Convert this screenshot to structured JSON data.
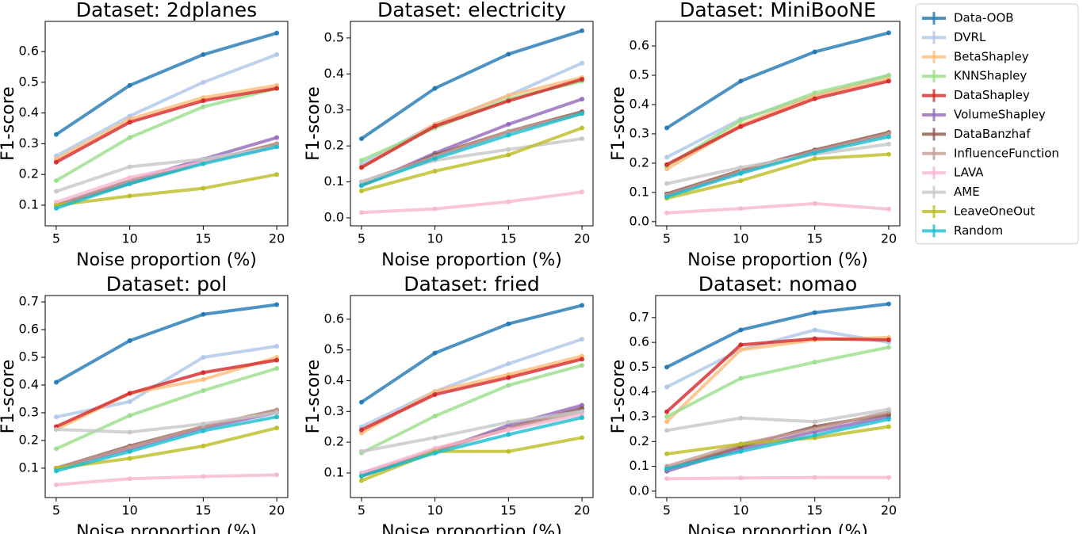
{
  "chart_data": [
    {
      "type": "line",
      "title": "Dataset: 2dplanes",
      "xlabel": "Noise proportion (%)",
      "ylabel": "F1-score",
      "x": [
        5,
        10,
        15,
        20
      ],
      "xlim": [
        4.25,
        20.75
      ],
      "xticks": [
        5,
        10,
        15,
        20
      ],
      "ylim": [
        0.033,
        0.698
      ],
      "yticks": [
        0.1,
        0.2,
        0.3,
        0.4,
        0.5,
        0.6
      ],
      "legend": "outside right",
      "series": [
        {
          "name": "Data-OOB",
          "color": "#1f77b4",
          "values": [
            0.33,
            0.49,
            0.59,
            0.66
          ]
        },
        {
          "name": "DVRL",
          "color": "#aec7e8",
          "values": [
            0.26,
            0.39,
            0.5,
            0.59
          ]
        },
        {
          "name": "BetaShapley",
          "color": "#ffbb78",
          "values": [
            0.25,
            0.38,
            0.45,
            0.49
          ]
        },
        {
          "name": "KNNShapley",
          "color": "#98df8a",
          "values": [
            0.18,
            0.32,
            0.42,
            0.48
          ]
        },
        {
          "name": "DataShapley",
          "color": "#d62728",
          "values": [
            0.24,
            0.37,
            0.44,
            0.48
          ]
        },
        {
          "name": "VolumeShapley",
          "color": "#9467bd",
          "values": [
            0.1,
            0.18,
            0.25,
            0.32
          ]
        },
        {
          "name": "DataBanzhaf",
          "color": "#8c564b",
          "values": [
            0.1,
            0.17,
            0.24,
            0.3
          ]
        },
        {
          "name": "InfluenceFunction",
          "color": "#c49c94",
          "values": [
            0.1,
            0.18,
            0.24,
            0.3
          ]
        },
        {
          "name": "LAVA",
          "color": "#f7b6d2",
          "values": [
            0.11,
            0.19,
            0.24,
            0.29
          ]
        },
        {
          "name": "AME",
          "color": "#c7c7c7",
          "values": [
            0.145,
            0.225,
            0.25,
            0.29
          ]
        },
        {
          "name": "LeaveOneOut",
          "color": "#bcbd22",
          "values": [
            0.1,
            0.13,
            0.155,
            0.2
          ]
        },
        {
          "name": "Random",
          "color": "#17becf",
          "values": [
            0.09,
            0.17,
            0.235,
            0.29
          ]
        }
      ]
    },
    {
      "type": "line",
      "title": "Dataset: electricity",
      "xlabel": "Noise proportion (%)",
      "ylabel": "F1-score",
      "x": [
        5,
        10,
        15,
        20
      ],
      "xlim": [
        4.25,
        20.75
      ],
      "xticks": [
        5,
        10,
        15,
        20
      ],
      "ylim": [
        -0.022,
        0.546
      ],
      "yticks": [
        {
          "value": 0,
          "label": "0.0"
        },
        0.1,
        0.2,
        0.3,
        0.4,
        0.5
      ],
      "series": [
        {
          "name": "Data-OOB",
          "color": "#1f77b4",
          "values": [
            0.22,
            0.36,
            0.455,
            0.52
          ]
        },
        {
          "name": "DVRL",
          "color": "#aec7e8",
          "values": [
            0.15,
            0.26,
            0.34,
            0.43
          ]
        },
        {
          "name": "BetaShapley",
          "color": "#ffbb78",
          "values": [
            0.14,
            0.26,
            0.34,
            0.39
          ]
        },
        {
          "name": "KNNShapley",
          "color": "#98df8a",
          "values": [
            0.16,
            0.25,
            0.33,
            0.38
          ]
        },
        {
          "name": "DataShapley",
          "color": "#d62728",
          "values": [
            0.14,
            0.255,
            0.325,
            0.385
          ]
        },
        {
          "name": "VolumeShapley",
          "color": "#9467bd",
          "values": [
            0.09,
            0.18,
            0.26,
            0.33
          ]
        },
        {
          "name": "DataBanzhaf",
          "color": "#8c564b",
          "values": [
            0.09,
            0.175,
            0.24,
            0.295
          ]
        },
        {
          "name": "InfluenceFunction",
          "color": "#c49c94",
          "values": [
            0.1,
            0.17,
            0.24,
            0.29
          ]
        },
        {
          "name": "LAVA",
          "color": "#f7b6d2",
          "values": [
            0.015,
            0.025,
            0.045,
            0.072
          ]
        },
        {
          "name": "AME",
          "color": "#c7c7c7",
          "values": [
            0.1,
            0.16,
            0.19,
            0.22
          ]
        },
        {
          "name": "LeaveOneOut",
          "color": "#bcbd22",
          "values": [
            0.075,
            0.13,
            0.175,
            0.25
          ]
        },
        {
          "name": "Random",
          "color": "#17becf",
          "values": [
            0.09,
            0.165,
            0.23,
            0.29
          ]
        }
      ]
    },
    {
      "type": "line",
      "title": "Dataset: MiniBooNE",
      "xlabel": "Noise proportion (%)",
      "ylabel": "F1-score",
      "x": [
        5,
        10,
        15,
        20
      ],
      "xlim": [
        4.25,
        20.75
      ],
      "xticks": [
        5,
        10,
        15,
        20
      ],
      "ylim": [
        -0.014,
        0.684
      ],
      "yticks": [
        {
          "value": 0,
          "label": "0.0"
        },
        0.1,
        0.2,
        0.3,
        0.4,
        0.5,
        0.6
      ],
      "series": [
        {
          "name": "Data-OOB",
          "color": "#1f77b4",
          "values": [
            0.32,
            0.48,
            0.58,
            0.645
          ]
        },
        {
          "name": "DVRL",
          "color": "#aec7e8",
          "values": [
            0.22,
            0.35,
            0.43,
            0.5
          ]
        },
        {
          "name": "BetaShapley",
          "color": "#ffbb78",
          "values": [
            0.18,
            0.33,
            0.43,
            0.49
          ]
        },
        {
          "name": "KNNShapley",
          "color": "#98df8a",
          "values": [
            0.19,
            0.345,
            0.44,
            0.5
          ]
        },
        {
          "name": "DataShapley",
          "color": "#d62728",
          "values": [
            0.195,
            0.325,
            0.42,
            0.48
          ]
        },
        {
          "name": "VolumeShapley",
          "color": "#9467bd",
          "values": [
            0.09,
            0.17,
            0.24,
            0.3
          ]
        },
        {
          "name": "DataBanzhaf",
          "color": "#8c564b",
          "values": [
            0.095,
            0.175,
            0.245,
            0.305
          ]
        },
        {
          "name": "InfluenceFunction",
          "color": "#c49c94",
          "values": [
            0.09,
            0.17,
            0.24,
            0.3
          ]
        },
        {
          "name": "LAVA",
          "color": "#f7b6d2",
          "values": [
            0.03,
            0.045,
            0.062,
            0.043
          ]
        },
        {
          "name": "AME",
          "color": "#c7c7c7",
          "values": [
            0.13,
            0.185,
            0.23,
            0.265
          ]
        },
        {
          "name": "LeaveOneOut",
          "color": "#bcbd22",
          "values": [
            0.08,
            0.14,
            0.215,
            0.23
          ]
        },
        {
          "name": "Random",
          "color": "#17becf",
          "values": [
            0.085,
            0.165,
            0.235,
            0.29
          ]
        }
      ]
    },
    {
      "type": "line",
      "title": "Dataset: pol",
      "xlabel": "Noise proportion (%)",
      "ylabel": "F1-score",
      "x": [
        5,
        10,
        15,
        20
      ],
      "xlim": [
        4.25,
        20.75
      ],
      "xticks": [
        5,
        10,
        15,
        20
      ],
      "ylim": [
        -0.006,
        0.723
      ],
      "yticks": [
        0.1,
        0.2,
        0.3,
        0.4,
        0.5,
        0.6,
        0.7
      ],
      "series": [
        {
          "name": "Data-OOB",
          "color": "#1f77b4",
          "values": [
            0.41,
            0.56,
            0.655,
            0.69
          ]
        },
        {
          "name": "DVRL",
          "color": "#aec7e8",
          "values": [
            0.285,
            0.34,
            0.5,
            0.54
          ]
        },
        {
          "name": "BetaShapley",
          "color": "#ffbb78",
          "values": [
            0.24,
            0.37,
            0.42,
            0.5
          ]
        },
        {
          "name": "KNNShapley",
          "color": "#98df8a",
          "values": [
            0.17,
            0.29,
            0.38,
            0.46
          ]
        },
        {
          "name": "DataShapley",
          "color": "#d62728",
          "values": [
            0.25,
            0.37,
            0.445,
            0.49
          ]
        },
        {
          "name": "VolumeShapley",
          "color": "#9467bd",
          "values": [
            0.1,
            0.17,
            0.245,
            0.3
          ]
        },
        {
          "name": "DataBanzhaf",
          "color": "#8c564b",
          "values": [
            0.1,
            0.18,
            0.25,
            0.31
          ]
        },
        {
          "name": "InfluenceFunction",
          "color": "#c49c94",
          "values": [
            0.1,
            0.175,
            0.25,
            0.31
          ]
        },
        {
          "name": "LAVA",
          "color": "#f7b6d2",
          "values": [
            0.04,
            0.062,
            0.07,
            0.076
          ]
        },
        {
          "name": "AME",
          "color": "#c7c7c7",
          "values": [
            0.24,
            0.23,
            0.26,
            0.3
          ]
        },
        {
          "name": "LeaveOneOut",
          "color": "#bcbd22",
          "values": [
            0.1,
            0.135,
            0.18,
            0.245
          ]
        },
        {
          "name": "Random",
          "color": "#17becf",
          "values": [
            0.09,
            0.16,
            0.235,
            0.285
          ]
        }
      ]
    },
    {
      "type": "line",
      "title": "Dataset: fried",
      "xlabel": "Noise proportion (%)",
      "ylabel": "F1-score",
      "x": [
        5,
        10,
        15,
        20
      ],
      "xlim": [
        4.25,
        20.75
      ],
      "xticks": [
        5,
        10,
        15,
        20
      ],
      "ylim": [
        0.02,
        0.677
      ],
      "yticks": [
        0.1,
        0.2,
        0.3,
        0.4,
        0.5,
        0.6
      ],
      "series": [
        {
          "name": "Data-OOB",
          "color": "#1f77b4",
          "values": [
            0.33,
            0.49,
            0.585,
            0.645
          ]
        },
        {
          "name": "DVRL",
          "color": "#aec7e8",
          "values": [
            0.25,
            0.365,
            0.455,
            0.535
          ]
        },
        {
          "name": "BetaShapley",
          "color": "#ffbb78",
          "values": [
            0.23,
            0.365,
            0.42,
            0.48
          ]
        },
        {
          "name": "KNNShapley",
          "color": "#98df8a",
          "values": [
            0.165,
            0.285,
            0.385,
            0.45
          ]
        },
        {
          "name": "DataShapley",
          "color": "#d62728",
          "values": [
            0.24,
            0.355,
            0.41,
            0.47
          ]
        },
        {
          "name": "VolumeShapley",
          "color": "#9467bd",
          "values": [
            0.09,
            0.17,
            0.255,
            0.32
          ]
        },
        {
          "name": "DataBanzhaf",
          "color": "#8c564b",
          "values": [
            0.09,
            0.175,
            0.245,
            0.31
          ]
        },
        {
          "name": "InfluenceFunction",
          "color": "#c49c94",
          "values": [
            0.1,
            0.17,
            0.245,
            0.3
          ]
        },
        {
          "name": "LAVA",
          "color": "#f7b6d2",
          "values": [
            0.1,
            0.18,
            0.24,
            0.29
          ]
        },
        {
          "name": "AME",
          "color": "#c7c7c7",
          "values": [
            0.17,
            0.215,
            0.265,
            0.3
          ]
        },
        {
          "name": "LeaveOneOut",
          "color": "#bcbd22",
          "values": [
            0.075,
            0.17,
            0.17,
            0.215
          ]
        },
        {
          "name": "Random",
          "color": "#17becf",
          "values": [
            0.09,
            0.165,
            0.225,
            0.28
          ]
        }
      ]
    },
    {
      "type": "line",
      "title": "Dataset: nomao",
      "xlabel": "Noise proportion (%)",
      "ylabel": "F1-score",
      "x": [
        5,
        10,
        15,
        20
      ],
      "xlim": [
        4.25,
        20.75
      ],
      "xticks": [
        5,
        10,
        15,
        20
      ],
      "ylim": [
        -0.026,
        0.789
      ],
      "yticks": [
        {
          "value": 0,
          "label": "0.0"
        },
        0.1,
        0.2,
        0.3,
        0.4,
        0.5,
        0.6,
        0.7
      ],
      "series": [
        {
          "name": "Data-OOB",
          "color": "#1f77b4",
          "values": [
            0.5,
            0.65,
            0.72,
            0.755
          ]
        },
        {
          "name": "DVRL",
          "color": "#aec7e8",
          "values": [
            0.42,
            0.57,
            0.65,
            0.6
          ]
        },
        {
          "name": "BetaShapley",
          "color": "#ffbb78",
          "values": [
            0.28,
            0.57,
            0.61,
            0.62
          ]
        },
        {
          "name": "KNNShapley",
          "color": "#98df8a",
          "values": [
            0.3,
            0.455,
            0.52,
            0.58
          ]
        },
        {
          "name": "DataShapley",
          "color": "#d62728",
          "values": [
            0.32,
            0.59,
            0.615,
            0.61
          ]
        },
        {
          "name": "VolumeShapley",
          "color": "#9467bd",
          "values": [
            0.08,
            0.17,
            0.24,
            0.3
          ]
        },
        {
          "name": "DataBanzhaf",
          "color": "#8c564b",
          "values": [
            0.09,
            0.18,
            0.26,
            0.31
          ]
        },
        {
          "name": "InfluenceFunction",
          "color": "#c49c94",
          "values": [
            0.1,
            0.19,
            0.25,
            0.32
          ]
        },
        {
          "name": "LAVA",
          "color": "#f7b6d2",
          "values": [
            0.05,
            0.053,
            0.055,
            0.055
          ]
        },
        {
          "name": "AME",
          "color": "#c7c7c7",
          "values": [
            0.245,
            0.295,
            0.28,
            0.33
          ]
        },
        {
          "name": "LeaveOneOut",
          "color": "#bcbd22",
          "values": [
            0.15,
            0.19,
            0.215,
            0.26
          ]
        },
        {
          "name": "Random",
          "color": "#17becf",
          "values": [
            0.09,
            0.16,
            0.225,
            0.29
          ]
        }
      ]
    }
  ]
}
